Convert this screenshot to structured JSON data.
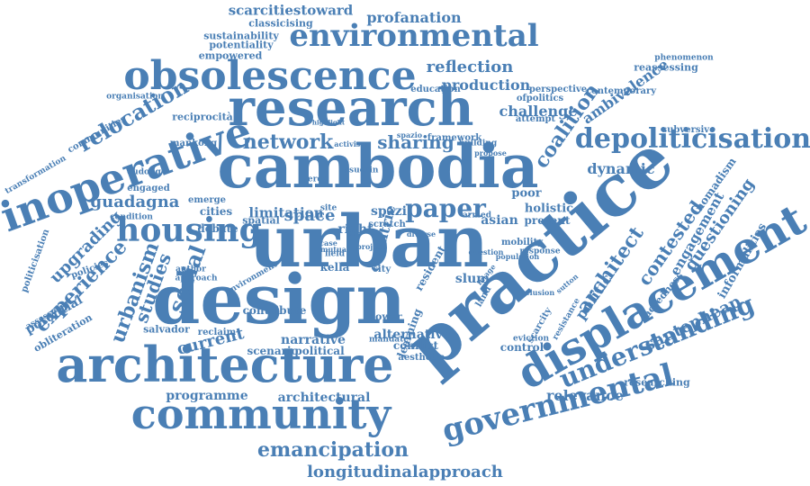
{
  "colors": {
    "word": "#4a7fb5",
    "background": "#ffffff"
  },
  "words": [
    "cambodia",
    "urban",
    "design",
    "practice",
    "research",
    "architecture",
    "community",
    "displacement",
    "obsolescence",
    "environmental",
    "governmental",
    "inoperative",
    "housing",
    "depoliticisation",
    "understanding",
    "emancipation",
    "longitudinalapproach",
    "network",
    "sharing",
    "paper",
    "space",
    "coalition",
    "relocation",
    "experience",
    "upgrading",
    "urbanism",
    "studies",
    "social",
    "architect",
    "contested",
    "questioning",
    "politic",
    "current",
    "reflection",
    "production",
    "challenge",
    "ambivalence",
    "scarcitiestoward",
    "profanation",
    "sustainability",
    "potentiality",
    "empowered",
    "classicising",
    "reciprocità",
    "communities",
    "organisation",
    "transformation",
    "politicisation",
    "potential",
    "obliteration",
    "programme",
    "architectural",
    "relevance",
    "researching",
    "santepheap",
    "sacredness",
    "informalities",
    "engagement",
    "nomadism",
    "subversive",
    "contemporary",
    "ofpolitics",
    "perspective",
    "phenomenon",
    "reassessing",
    "education",
    "framework",
    "building",
    "dynamic",
    "holistic",
    "poor",
    "asian",
    "present",
    "slum",
    "land",
    "control",
    "alternative",
    "conflict",
    "aesthetic",
    "mandate",
    "narrative",
    "political",
    "scenario",
    "contribute",
    "reclaim",
    "salvador",
    "guadagna",
    "condition",
    "limitation",
    "debate",
    "policies",
    "assessment",
    "environment",
    "author",
    "approach",
    "response",
    "mobility",
    "armed",
    "resident",
    "learning",
    "power",
    "perde",
    "spazi",
    "scratch",
    "right",
    "kella",
    "city",
    "site",
    "field",
    "spatial",
    "cities",
    "emerge",
    "oudong",
    "engaged",
    "mankong",
    "highlight",
    "issuesin",
    "activism",
    "spazio",
    "attempt",
    "propose",
    "question",
    "eviction",
    "scarcity",
    "resistance",
    "exclusion",
    "population",
    "sutton",
    "project",
    "countrie",
    "diverse",
    "case",
    "mutual",
    "image",
    "group",
    "archetype"
  ]
}
